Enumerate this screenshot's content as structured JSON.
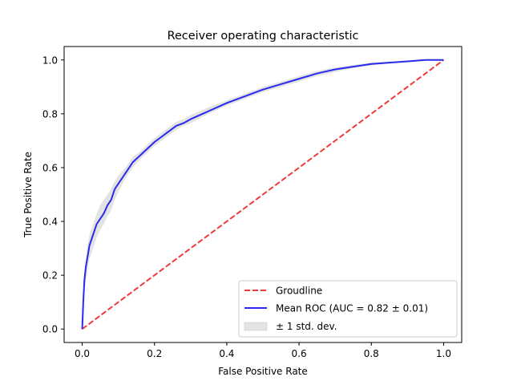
{
  "chart_data": {
    "type": "line",
    "title": "Receiver operating characteristic",
    "xlabel": "False Positive Rate",
    "ylabel": "True Positive Rate",
    "xlim": [
      -0.05,
      1.05
    ],
    "ylim": [
      -0.05,
      1.05
    ],
    "xticks": [
      {
        "value": 0.0,
        "label": "0.0"
      },
      {
        "value": 0.2,
        "label": "0.2"
      },
      {
        "value": 0.4,
        "label": "0.4"
      },
      {
        "value": 0.6,
        "label": "0.6"
      },
      {
        "value": 0.8,
        "label": "0.8"
      },
      {
        "value": 1.0,
        "label": "1.0"
      }
    ],
    "yticks": [
      {
        "value": 0.0,
        "label": "0.0"
      },
      {
        "value": 0.2,
        "label": "0.2"
      },
      {
        "value": 0.4,
        "label": "0.4"
      },
      {
        "value": 0.6,
        "label": "0.6"
      },
      {
        "value": 0.8,
        "label": "0.8"
      },
      {
        "value": 1.0,
        "label": "1.0"
      }
    ],
    "grid": false,
    "legend_position": "lower-right",
    "series": [
      {
        "name": "Groudline",
        "style": "dashed",
        "color": "#f03a3a",
        "x": [
          0.0,
          1.0
        ],
        "y": [
          0.0,
          1.0
        ]
      },
      {
        "name": "Mean ROC (AUC = 0.82 ± 0.01)",
        "style": "solid",
        "color": "#2a2aee",
        "x": [
          0.0,
          0.003,
          0.006,
          0.01,
          0.015,
          0.02,
          0.03,
          0.04,
          0.05,
          0.06,
          0.07,
          0.08,
          0.09,
          0.1,
          0.12,
          0.14,
          0.16,
          0.18,
          0.2,
          0.22,
          0.24,
          0.26,
          0.28,
          0.3,
          0.35,
          0.4,
          0.45,
          0.5,
          0.55,
          0.6,
          0.65,
          0.7,
          0.75,
          0.8,
          0.85,
          0.9,
          0.95,
          1.0
        ],
        "y": [
          0.0,
          0.1,
          0.18,
          0.23,
          0.27,
          0.31,
          0.35,
          0.39,
          0.41,
          0.43,
          0.46,
          0.48,
          0.52,
          0.54,
          0.58,
          0.62,
          0.645,
          0.67,
          0.695,
          0.715,
          0.735,
          0.755,
          0.765,
          0.78,
          0.81,
          0.84,
          0.865,
          0.89,
          0.91,
          0.93,
          0.95,
          0.965,
          0.975,
          0.985,
          0.99,
          0.995,
          1.0,
          1.0
        ]
      }
    ],
    "band": {
      "name": "± 1 std. dev.",
      "color": "#c8c8c8",
      "x": [
        0.0,
        0.003,
        0.006,
        0.01,
        0.015,
        0.02,
        0.03,
        0.04,
        0.05,
        0.06,
        0.07,
        0.08,
        0.09,
        0.1,
        0.12,
        0.14,
        0.16,
        0.18,
        0.2,
        0.22,
        0.24,
        0.26,
        0.28,
        0.3,
        0.35,
        0.4,
        0.45,
        0.5,
        0.55,
        0.6,
        0.65,
        0.7,
        0.75,
        0.8,
        0.85,
        0.9,
        0.95,
        1.0
      ],
      "lower": [
        0.0,
        0.08,
        0.14,
        0.18,
        0.22,
        0.26,
        0.3,
        0.34,
        0.37,
        0.39,
        0.42,
        0.44,
        0.48,
        0.51,
        0.56,
        0.6,
        0.63,
        0.655,
        0.68,
        0.7,
        0.72,
        0.74,
        0.755,
        0.765,
        0.8,
        0.83,
        0.855,
        0.88,
        0.9,
        0.92,
        0.94,
        0.955,
        0.97,
        0.98,
        0.988,
        0.993,
        0.998,
        1.0
      ],
      "upper": [
        0.0,
        0.12,
        0.21,
        0.26,
        0.31,
        0.35,
        0.39,
        0.43,
        0.46,
        0.48,
        0.5,
        0.52,
        0.55,
        0.57,
        0.6,
        0.64,
        0.66,
        0.685,
        0.71,
        0.73,
        0.75,
        0.77,
        0.78,
        0.795,
        0.825,
        0.85,
        0.875,
        0.9,
        0.92,
        0.94,
        0.96,
        0.972,
        0.982,
        0.99,
        0.994,
        0.997,
        1.0,
        1.0
      ]
    }
  }
}
